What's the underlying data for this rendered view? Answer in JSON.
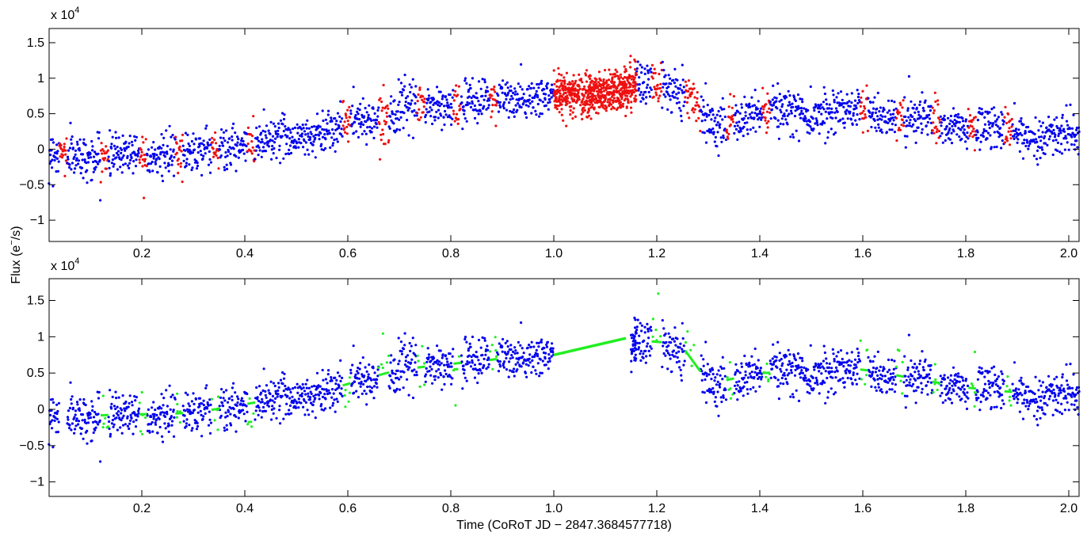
{
  "chart_data": [
    {
      "type": "scatter",
      "panel": "top",
      "xlim": [
        0.02,
        2.02
      ],
      "ylim": [
        -13000,
        17000
      ],
      "y_multiplier_label": {
        "base": "x 10",
        "exponent": "4"
      },
      "xticks": [
        0.2,
        0.4,
        0.6,
        0.8,
        1.0,
        1.2,
        1.4,
        1.6,
        1.8,
        2.0
      ],
      "xtick_labels": [
        "0.2",
        "0.4",
        "0.6",
        "0.8",
        "1.0",
        "1.2",
        "1.4",
        "1.6",
        "1.8",
        "2.0"
      ],
      "yticks": [
        -10000,
        -5000,
        0,
        5000,
        10000,
        15000
      ],
      "ytick_labels": [
        "−1",
        "−0.5",
        "0",
        "0.5",
        "1",
        "1.5"
      ],
      "grid": false,
      "trend_anchors": {
        "x": [
          0.02,
          0.3,
          0.55,
          0.7,
          0.9,
          1.1,
          1.2,
          1.26,
          1.3,
          1.4,
          1.6,
          1.8,
          2.02
        ],
        "y": [
          -1000,
          -500,
          2500,
          5500,
          7000,
          8000,
          9500,
          8000,
          3500,
          5000,
          5500,
          3000,
          1500
        ]
      },
      "series": [
        {
          "name": "",
          "color": "#0000ee",
          "marker": "dot",
          "x_range": [
            0.02,
            2.02
          ],
          "count": 2600,
          "scatter_sd": 1500
        },
        {
          "name": "",
          "color": "#ee1111",
          "marker": "dot",
          "segments": [
            [
              1.0,
              1.16
            ],
            [
              0.04,
              0.055
            ],
            [
              0.12,
              0.135
            ],
            [
              0.195,
              0.21
            ],
            [
              0.265,
              0.28
            ],
            [
              0.335,
              0.35
            ],
            [
              0.405,
              0.42
            ],
            [
              0.59,
              0.605
            ],
            [
              0.66,
              0.68
            ],
            [
              0.735,
              0.75
            ],
            [
              0.805,
              0.82
            ],
            [
              0.875,
              0.89
            ],
            [
              1.19,
              1.21
            ],
            [
              1.255,
              1.285
            ],
            [
              1.335,
              1.35
            ],
            [
              1.405,
              1.42
            ],
            [
              1.595,
              1.61
            ],
            [
              1.665,
              1.68
            ],
            [
              1.735,
              1.75
            ],
            [
              1.805,
              1.82
            ],
            [
              1.875,
              1.89
            ]
          ]
        }
      ]
    },
    {
      "type": "scatter",
      "panel": "bottom",
      "xlim": [
        0.02,
        2.02
      ],
      "ylim": [
        -12000,
        18000
      ],
      "y_multiplier_label": {
        "base": "x 10",
        "exponent": "4"
      },
      "xticks": [
        0.2,
        0.4,
        0.6,
        0.8,
        1.0,
        1.2,
        1.4,
        1.6,
        1.8,
        2.0
      ],
      "xtick_labels": [
        "0.2",
        "0.4",
        "0.6",
        "0.8",
        "1.0",
        "1.2",
        "1.4",
        "1.6",
        "1.8",
        "2.0"
      ],
      "yticks": [
        -10000,
        -5000,
        0,
        5000,
        10000,
        15000
      ],
      "ytick_labels": [
        "−1",
        "−0.5",
        "0",
        "0.5",
        "1",
        "1.5"
      ],
      "grid": false,
      "series": [
        {
          "name": "",
          "color": "#0000ee",
          "marker": "dot",
          "same_as_top": true,
          "excluded": [
            1.0,
            1.15
          ]
        },
        {
          "name": "",
          "color": "#22ee22",
          "marker": "line+dot",
          "interpolation_line": {
            "x": [
              1.0,
              1.14
            ],
            "y": [
              7500,
              9800
            ]
          },
          "segments": [
            [
              0.04,
              0.055
            ],
            [
              0.12,
              0.135
            ],
            [
              0.195,
              0.21
            ],
            [
              0.265,
              0.28
            ],
            [
              0.335,
              0.35
            ],
            [
              0.405,
              0.42
            ],
            [
              0.59,
              0.605
            ],
            [
              0.66,
              0.68
            ],
            [
              0.735,
              0.75
            ],
            [
              0.805,
              0.82
            ],
            [
              0.875,
              0.89
            ],
            [
              1.19,
              1.21
            ],
            [
              1.255,
              1.285
            ],
            [
              1.335,
              1.35
            ],
            [
              1.405,
              1.42
            ],
            [
              1.595,
              1.61
            ],
            [
              1.665,
              1.68
            ],
            [
              1.735,
              1.75
            ],
            [
              1.805,
              1.82
            ],
            [
              1.875,
              1.89
            ]
          ]
        }
      ]
    }
  ],
  "ylabel": {
    "text": "Flux (e",
    "superscript": "−",
    "tail": "/s)"
  },
  "xlabel": "Time (CoRoT JD − 2847.3684577718)"
}
